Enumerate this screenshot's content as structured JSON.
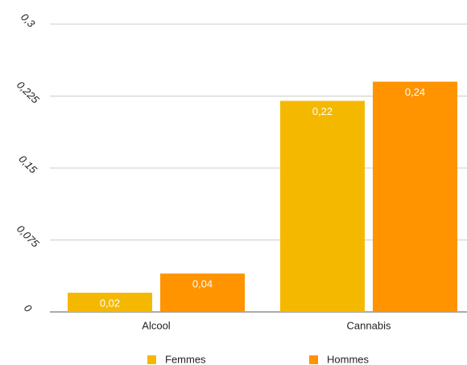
{
  "chart_data": {
    "type": "bar",
    "categories": [
      "Alcool",
      "Cannabis"
    ],
    "series": [
      {
        "name": "Femmes",
        "color": "#f5b800",
        "values": [
          0.02,
          0.22
        ],
        "value_labels": [
          "0,02",
          "0,22"
        ]
      },
      {
        "name": "Hommes",
        "color": "#ff9300",
        "values": [
          0.04,
          0.24
        ],
        "value_labels": [
          "0,04",
          "0,24"
        ]
      }
    ],
    "ylim": [
      0,
      0.3
    ],
    "yticks": [
      0,
      {
        "value": 0.075,
        "label": "0,075"
      },
      {
        "value": 0.15,
        "label": "0,15"
      },
      {
        "value": 0.225,
        "label": "0,225"
      },
      {
        "value": 0.3,
        "label": "0,3"
      }
    ],
    "grid": true,
    "legend": "bottom"
  }
}
